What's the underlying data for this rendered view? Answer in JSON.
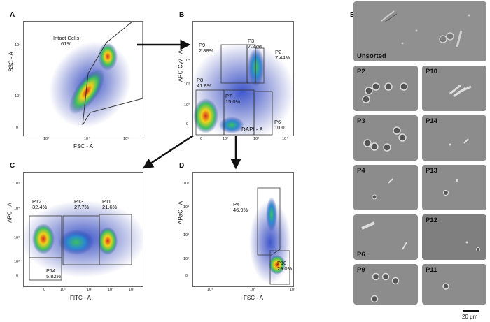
{
  "panels": {
    "A": {
      "letter": "A",
      "xlabel": "FSC - A",
      "ylabel": "SSC - A",
      "xticks": [
        "10²",
        "10⁴",
        "10⁵"
      ],
      "yticks": [
        "10⁴",
        "10³",
        "0"
      ],
      "gates": [
        {
          "name": "Intact Cells",
          "pct": "61%"
        }
      ]
    },
    "B": {
      "letter": "B",
      "xlabel": "DAPI - A",
      "ylabel": "APC-Cy7 - A",
      "xticks": [
        "0",
        "10²",
        "10³",
        "10⁴"
      ],
      "yticks": [
        "10⁴",
        "10³",
        "10²",
        "0"
      ],
      "gates": [
        {
          "name": "P9",
          "pct": "2.88%"
        },
        {
          "name": "P3",
          "pct": "7.27%"
        },
        {
          "name": "P2",
          "pct": "7.44%"
        },
        {
          "name": "P8",
          "pct": "41.8%"
        },
        {
          "name": "P7",
          "pct": "15.0%"
        },
        {
          "name": "P6",
          "pct": "10.0"
        }
      ]
    },
    "C": {
      "letter": "C",
      "xlabel": "FITC - A",
      "ylabel": "APC - A",
      "xticks": [
        "0",
        "10²",
        "10³",
        "10⁴",
        "10⁵"
      ],
      "yticks": [
        "10⁵",
        "10⁴",
        "10³",
        "10²",
        "0"
      ],
      "gates": [
        {
          "name": "P12",
          "pct": "32.4%"
        },
        {
          "name": "P13",
          "pct": "27.7%"
        },
        {
          "name": "P11",
          "pct": "21.6%"
        },
        {
          "name": "P14",
          "pct": "5.82%"
        }
      ]
    },
    "D": {
      "letter": "D",
      "xlabel": "FSC - A",
      "ylabel": "APaC - A",
      "xticks": [
        "10³",
        "10⁴",
        "10⁵"
      ],
      "yticks": [
        "10⁵",
        "10⁴",
        "10³",
        "10²",
        "0"
      ],
      "gates": [
        {
          "name": "P4",
          "pct": "46.9%"
        },
        {
          "name": "P10",
          "pct": "29.0%"
        }
      ]
    },
    "E": {
      "letter": "E",
      "tiles": [
        "Unsorted",
        "P2",
        "P10",
        "P3",
        "P14",
        "P4",
        "P13",
        "P6",
        "P12",
        "P9",
        "P11"
      ],
      "scalebar": "20 μm"
    }
  },
  "colors": {
    "dense": "#d62a1e",
    "mid": "#f2d21a",
    "low": "#3cc060",
    "sparse": "#2233aa",
    "gate": "#333333"
  }
}
